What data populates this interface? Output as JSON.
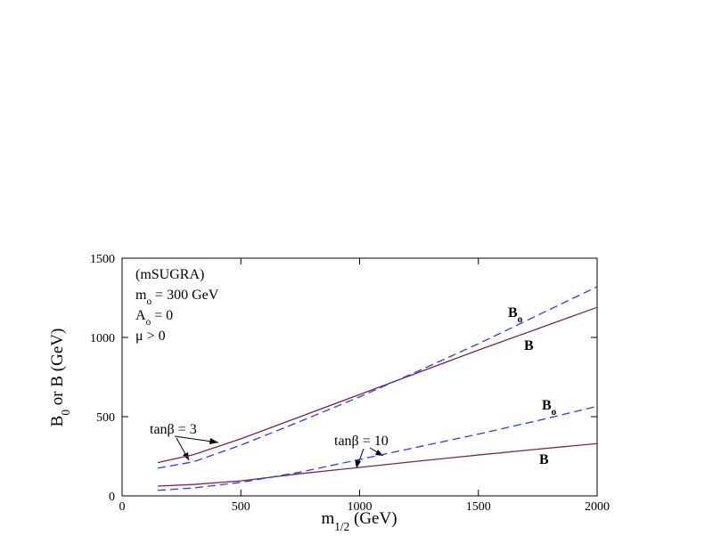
{
  "chart_data": {
    "type": "line",
    "x_label": [
      {
        "text": "m"
      },
      {
        "text": "1/2",
        "sub": true
      },
      {
        "text": " (GeV)"
      }
    ],
    "y_label": [
      {
        "text": "B"
      },
      {
        "text": "0",
        "sub": true
      },
      {
        "text": " or B (GeV)"
      }
    ],
    "x": [
      150,
      300,
      500,
      750,
      1000,
      1250,
      1500,
      1750,
      2000
    ],
    "series": [
      {
        "color": "#80205a",
        "dash": false,
        "values": [
          210,
          260,
          360,
          500,
          640,
          780,
          920,
          1055,
          1190
        ]
      },
      {
        "color": "#2a3ee8",
        "dash": true,
        "values": [
          175,
          215,
          320,
          470,
          625,
          790,
          960,
          1140,
          1320
        ]
      },
      {
        "color": "#80205a",
        "dash": false,
        "values": [
          62,
          72,
          95,
          140,
          180,
          220,
          258,
          295,
          330
        ]
      },
      {
        "color": "#2a3ee8",
        "dash": true,
        "values": [
          35,
          50,
          85,
          150,
          230,
          310,
          390,
          475,
          565
        ]
      }
    ],
    "xlim": [
      0,
      2000
    ],
    "ylim": [
      0,
      1500
    ],
    "xticks": [
      0,
      500,
      1000,
      1500,
      2000
    ],
    "yticks": [
      0,
      500,
      1000,
      1500
    ],
    "annotations": [
      [
        {
          "text": "(mSUGRA)"
        }
      ],
      [
        {
          "text": "m"
        },
        {
          "text": "o",
          "sub": true
        },
        {
          "text": " = 300 GeV"
        }
      ],
      [
        {
          "text": "A"
        },
        {
          "text": "o",
          "sub": true
        },
        {
          "text": " = 0"
        }
      ],
      [
        {
          "text": "μ > 0"
        }
      ],
      [
        {
          "text": "tanβ = 3"
        }
      ],
      [
        {
          "text": "tanβ = 10"
        }
      ],
      [
        {
          "text": "B"
        },
        {
          "text": "o",
          "sub": true
        }
      ],
      [
        {
          "text": "B"
        }
      ],
      [
        {
          "text": "B"
        },
        {
          "text": "o",
          "sub": true
        }
      ],
      [
        {
          "text": "B"
        }
      ]
    ]
  }
}
